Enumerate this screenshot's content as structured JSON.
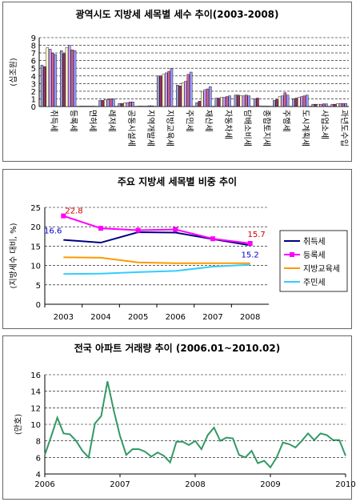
{
  "chart_data": [
    {
      "type": "bar",
      "title": "광역시도 지방세 세목별 세수 추이(2003-2008)",
      "ylabel": "(십조원)",
      "ylim": [
        0,
        9
      ],
      "yticks": [
        0,
        1,
        2,
        3,
        4,
        5,
        6,
        7,
        8,
        9
      ],
      "grid": true,
      "categories": [
        "취득세",
        "등록세",
        "면허세",
        "레저세",
        "공동시설세",
        "지역개발세",
        "지방교육세",
        "주민세",
        "재산세",
        "자동차세",
        "담배소비세",
        "종합토지세",
        "주행세",
        "도시계획세",
        "사업소세",
        "과년도수입"
      ],
      "series": [
        {
          "values": [
            5.4,
            7.3,
            0.05,
            0.8,
            0.4,
            0.05,
            4.0,
            2.8,
            0.5,
            1.1,
            1.5,
            1.0,
            0.8,
            1.0,
            0.3,
            0.3
          ]
        },
        {
          "values": [
            5.2,
            6.9,
            0.05,
            0.8,
            0.4,
            0.05,
            4.0,
            2.7,
            0.7,
            1.1,
            1.5,
            1.1,
            0.9,
            1.1,
            0.3,
            0.3
          ]
        },
        {
          "values": [
            7.7,
            7.7,
            0.05,
            0.9,
            0.5,
            0.05,
            4.2,
            3.1,
            1.9,
            1.2,
            1.4,
            0.1,
            1.3,
            1.2,
            0.3,
            0.4
          ]
        },
        {
          "values": [
            7.5,
            8.0,
            0.05,
            0.9,
            0.5,
            0.05,
            4.4,
            3.3,
            2.2,
            1.2,
            1.4,
            0.05,
            1.4,
            1.3,
            0.3,
            0.4
          ]
        },
        {
          "values": [
            7.0,
            7.4,
            0.05,
            1.0,
            0.6,
            0.1,
            4.6,
            4.2,
            2.3,
            1.3,
            1.5,
            0.05,
            1.8,
            1.4,
            0.35,
            0.4
          ]
        },
        {
          "values": [
            6.8,
            7.3,
            0.05,
            1.0,
            0.6,
            0.1,
            5.0,
            4.5,
            2.6,
            1.4,
            1.4,
            0.05,
            1.5,
            1.5,
            0.35,
            0.4
          ]
        }
      ],
      "colors": [
        "#9999cc",
        "#993366",
        "#ffffcc",
        "#cc99ff",
        "#cc6699",
        "#9999ff"
      ]
    },
    {
      "type": "line",
      "title": "주요 지방세 세목별 비중 추이",
      "ylabel": "(지방세수 대비, %)",
      "ylim": [
        0,
        25
      ],
      "yticks": [
        0,
        5,
        10,
        15,
        20,
        25
      ],
      "x": [
        "2003",
        "2004",
        "2005",
        "2006",
        "2007",
        "2008"
      ],
      "grid": true,
      "legend_position": "right",
      "series": [
        {
          "name": "취득세",
          "color": "#000080",
          "marker": "none",
          "values": [
            16.6,
            15.9,
            18.6,
            18.5,
            16.8,
            15.2
          ]
        },
        {
          "name": "등록세",
          "color": "#ff00ff",
          "marker": "square",
          "values": [
            22.8,
            19.6,
            19.1,
            19.3,
            16.9,
            15.7
          ]
        },
        {
          "name": "지방교육세",
          "color": "#ff9900",
          "marker": "none",
          "values": [
            12.1,
            12.0,
            10.8,
            10.6,
            10.6,
            10.6
          ]
        },
        {
          "name": "주민세",
          "color": "#33ccff",
          "marker": "none",
          "values": [
            7.8,
            7.9,
            8.3,
            8.6,
            9.7,
            10.2
          ]
        }
      ],
      "annotations": [
        {
          "text": "22.8",
          "color": "#cc0000"
        },
        {
          "text": "16.6",
          "color": "#0000cc"
        },
        {
          "text": "15.7",
          "color": "#cc0000"
        },
        {
          "text": "15.2",
          "color": "#0000cc"
        }
      ]
    },
    {
      "type": "line",
      "title": "전국 아파트 거래량 추이 (2006.01~2010.02)",
      "ylabel": "(만호)",
      "ylim": [
        4,
        16
      ],
      "yticks": [
        4,
        6,
        8,
        10,
        12,
        14,
        16
      ],
      "xticks": [
        "2006",
        "2007",
        "2008",
        "2009",
        "2010"
      ],
      "grid": true,
      "color": "#339966",
      "values": [
        6.3,
        8.5,
        10.8,
        8.9,
        8.8,
        8.0,
        6.8,
        6.0,
        10.1,
        11.0,
        15.2,
        11.7,
        8.6,
        6.3,
        7.0,
        7.0,
        6.7,
        6.1,
        6.6,
        6.2,
        5.4,
        7.9,
        7.9,
        7.5,
        8.0,
        7.0,
        8.7,
        9.6,
        8.0,
        8.4,
        8.3,
        6.3,
        6.0,
        6.8,
        5.3,
        5.6,
        4.8,
        6.0,
        7.8,
        7.6,
        7.2,
        8.0,
        8.9,
        8.1,
        8.9,
        8.7,
        8.1,
        8.1,
        6.2
      ]
    }
  ]
}
